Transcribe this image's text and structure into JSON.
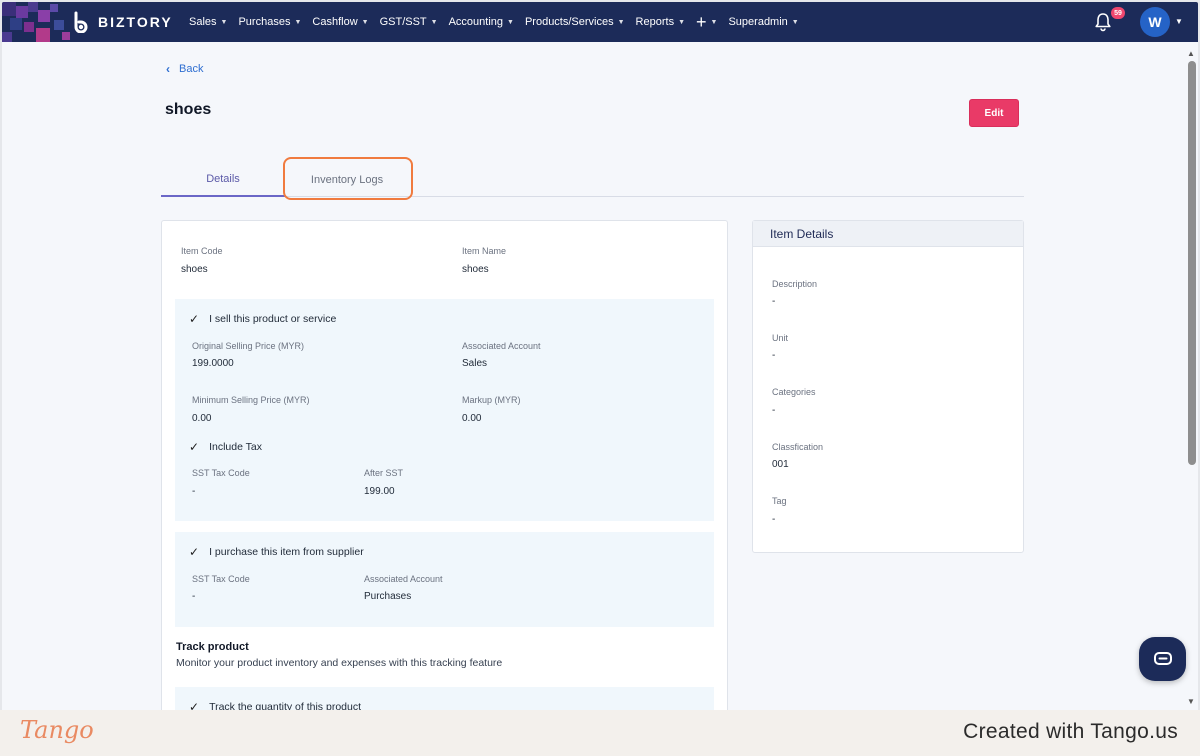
{
  "nav": {
    "brand": "BIZTORY",
    "menu": [
      {
        "label": "Sales"
      },
      {
        "label": "Purchases"
      },
      {
        "label": "Cashflow"
      },
      {
        "label": "GST/SST"
      },
      {
        "label": "Accounting"
      },
      {
        "label": "Products/Services"
      },
      {
        "label": "Reports"
      },
      {
        "label": "+"
      },
      {
        "label": "Superadmin"
      }
    ],
    "notification_count": "59",
    "avatar_initial": "W"
  },
  "page": {
    "back_label": "Back",
    "title": "shoes",
    "edit_label": "Edit",
    "tabs": [
      {
        "label": "Details",
        "active": true
      },
      {
        "label": "Inventory Logs",
        "active": false
      }
    ]
  },
  "main": {
    "item_code_label": "Item Code",
    "item_code": "shoes",
    "item_name_label": "Item Name",
    "item_name": "shoes",
    "sell": {
      "check_label": "I sell this product or service",
      "original_price_label": "Original Selling Price (MYR)",
      "original_price": "199.0000",
      "associated_account_label": "Associated Account",
      "associated_account": "Sales",
      "min_price_label": "Minimum Selling Price (MYR)",
      "min_price": "0.00",
      "markup_label": "Markup (MYR)",
      "markup": "0.00",
      "include_tax_label": "Include Tax",
      "sst_code_label": "SST Tax Code",
      "sst_code": "-",
      "after_sst_label": "After SST",
      "after_sst": "199.00"
    },
    "purchase": {
      "check_label": "I purchase this item from supplier",
      "sst_code_label": "SST Tax Code",
      "sst_code": "-",
      "associated_account_label": "Associated Account",
      "associated_account": "Purchases"
    },
    "track": {
      "title": "Track product",
      "description": "Monitor your product inventory and expenses with this tracking feature",
      "check_label": "Track the quantity of this product"
    }
  },
  "side": {
    "title": "Item Details",
    "fields": [
      {
        "label": "Description",
        "value": "-"
      },
      {
        "label": "Unit",
        "value": "-"
      },
      {
        "label": "Categories",
        "value": "-"
      },
      {
        "label": "Classfication",
        "value": "001"
      },
      {
        "label": "Tag",
        "value": "-"
      }
    ]
  },
  "footer": {
    "logo": "Tango",
    "created": "Created with Tango.us"
  },
  "colors": {
    "nav_bg": "#1c2b59",
    "edit_button": "#e93a67",
    "highlight": "#f07b3f",
    "link": "#2f6fd1",
    "tab_active": "#6b67c7"
  }
}
